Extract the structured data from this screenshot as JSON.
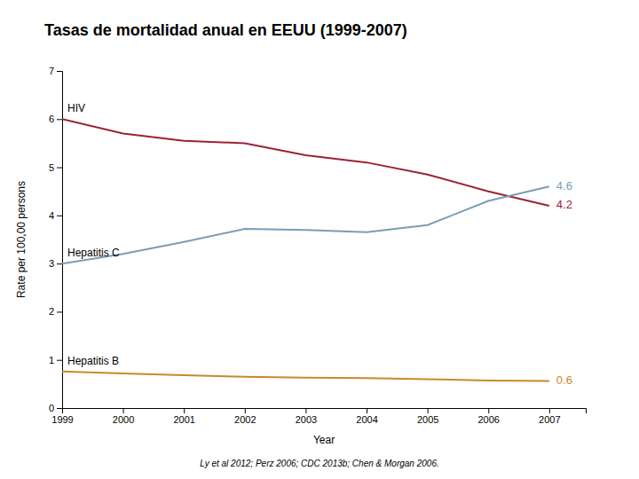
{
  "chart_data": {
    "type": "line",
    "title": "Tasas de mortalidad anual en EEUU (1999-2007)",
    "x_label": "Year",
    "y_label": "Rate per 100,00 persons",
    "footnote": "Ly et al 2012; Perz 2006; CDC 2013b; Chen & Morgan 2006.",
    "x": [
      1999,
      2000,
      2001,
      2002,
      2003,
      2004,
      2005,
      2006,
      2007
    ],
    "series": [
      {
        "name": "HIV",
        "color": "#9b2335",
        "values": [
          6.0,
          5.7,
          5.55,
          5.5,
          5.25,
          5.1,
          4.85,
          4.5,
          4.2
        ],
        "value_labels": [
          null,
          null,
          null,
          null,
          null,
          null,
          null,
          null,
          "4.2"
        ]
      },
      {
        "name": "Hepatitis C",
        "color": "#7b9db4",
        "values": [
          3.0,
          3.2,
          3.45,
          3.72,
          3.7,
          3.65,
          3.8,
          4.3,
          4.6
        ],
        "value_labels": [
          null,
          null,
          null,
          null,
          null,
          null,
          null,
          null,
          "4.6"
        ]
      },
      {
        "name": "Hepatitis B",
        "color": "#c8892a",
        "values": [
          0.76,
          0.72,
          0.68,
          0.65,
          0.63,
          0.62,
          0.6,
          0.57,
          0.56
        ],
        "value_labels": [
          null,
          null,
          null,
          null,
          null,
          null,
          null,
          null,
          "0.6"
        ]
      }
    ],
    "xlim": [
      1999,
      2007.6
    ],
    "xticks": [
      1999,
      2000,
      2001,
      2002,
      2003,
      2004,
      2005,
      2006,
      2007
    ],
    "ylim": [
      0,
      7
    ],
    "yticks": [
      0,
      1,
      2,
      3,
      4,
      5,
      6,
      7
    ],
    "grid": false
  }
}
